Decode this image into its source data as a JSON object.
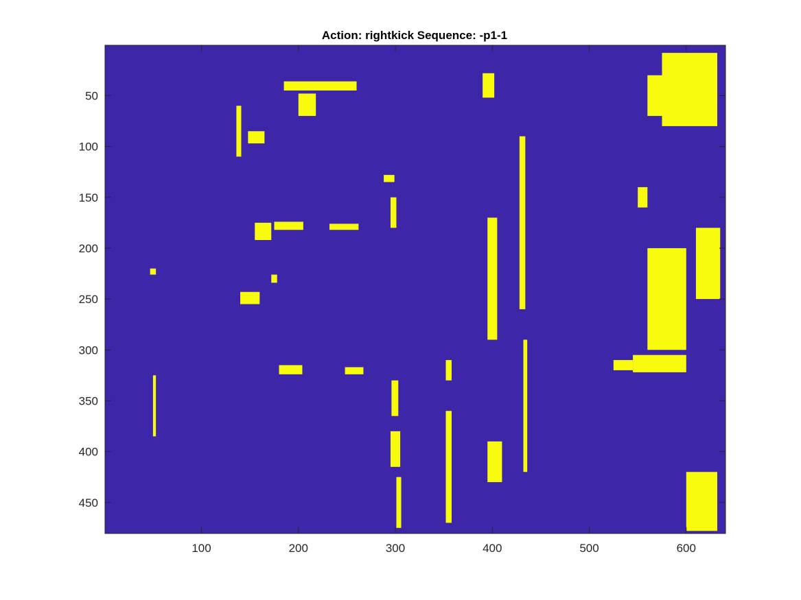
{
  "chart_data": {
    "type": "heatmap",
    "title": "Action: rightkick Sequence: -p1-1",
    "xlabel": "",
    "ylabel": "",
    "xlim": [
      0.5,
      640.5
    ],
    "ylim": [
      0.5,
      480.5
    ],
    "y_reversed": true,
    "xticks": [
      100,
      200,
      300,
      400,
      500,
      600
    ],
    "yticks": [
      50,
      100,
      150,
      200,
      250,
      300,
      350,
      400,
      450
    ],
    "grid": false,
    "legend": "none",
    "colors": {
      "background": "#3e26a8",
      "foreground": "#f9fb0e",
      "axes": "#262626"
    },
    "regions": [
      {
        "x": [
          148,
          165
        ],
        "y": [
          85,
          97
        ]
      },
      {
        "x": [
          185,
          260
        ],
        "y": [
          36,
          45
        ]
      },
      {
        "x": [
          200,
          218
        ],
        "y": [
          48,
          70
        ]
      },
      {
        "x": [
          155,
          172
        ],
        "y": [
          175,
          192
        ]
      },
      {
        "x": [
          175,
          205
        ],
        "y": [
          174,
          182
        ]
      },
      {
        "x": [
          232,
          262
        ],
        "y": [
          176,
          182
        ]
      },
      {
        "x": [
          140,
          160
        ],
        "y": [
          243,
          255
        ]
      },
      {
        "x": [
          172,
          178
        ],
        "y": [
          226,
          234
        ]
      },
      {
        "x": [
          180,
          204
        ],
        "y": [
          315,
          324
        ]
      },
      {
        "x": [
          248,
          267
        ],
        "y": [
          317,
          324
        ]
      },
      {
        "x": [
          288,
          299
        ],
        "y": [
          128,
          135
        ]
      },
      {
        "x": [
          295,
          301
        ],
        "y": [
          150,
          180
        ]
      },
      {
        "x": [
          296,
          303
        ],
        "y": [
          330,
          365
        ]
      },
      {
        "x": [
          295,
          305
        ],
        "y": [
          380,
          415
        ]
      },
      {
        "x": [
          301,
          306
        ],
        "y": [
          425,
          475
        ]
      },
      {
        "x": [
          352,
          358
        ],
        "y": [
          310,
          330
        ]
      },
      {
        "x": [
          352,
          358
        ],
        "y": [
          360,
          470
        ]
      },
      {
        "x": [
          390,
          402
        ],
        "y": [
          28,
          52
        ]
      },
      {
        "x": [
          428,
          434
        ],
        "y": [
          90,
          260
        ]
      },
      {
        "x": [
          432,
          436
        ],
        "y": [
          290,
          420
        ]
      },
      {
        "x": [
          395,
          410
        ],
        "y": [
          390,
          430
        ]
      },
      {
        "x": [
          395,
          405
        ],
        "y": [
          170,
          290
        ]
      },
      {
        "x": [
          545,
          600
        ],
        "y": [
          305,
          322
        ]
      },
      {
        "x": [
          525,
          545
        ],
        "y": [
          310,
          320
        ]
      },
      {
        "x": [
          575,
          632
        ],
        "y": [
          8,
          80
        ]
      },
      {
        "x": [
          600,
          632
        ],
        "y": [
          20,
          60
        ]
      },
      {
        "x": [
          560,
          600
        ],
        "y": [
          30,
          70
        ]
      },
      {
        "x": [
          610,
          635
        ],
        "y": [
          180,
          250
        ]
      },
      {
        "x": [
          600,
          632
        ],
        "y": [
          420,
          478
        ]
      },
      {
        "x": [
          560,
          600
        ],
        "y": [
          200,
          300
        ]
      },
      {
        "x": [
          47,
          53
        ],
        "y": [
          220,
          226
        ]
      },
      {
        "x": [
          50,
          53
        ],
        "y": [
          325,
          385
        ]
      },
      {
        "x": [
          136,
          141
        ],
        "y": [
          60,
          110
        ]
      },
      {
        "x": [
          550,
          560
        ],
        "y": [
          140,
          160
        ]
      }
    ]
  }
}
